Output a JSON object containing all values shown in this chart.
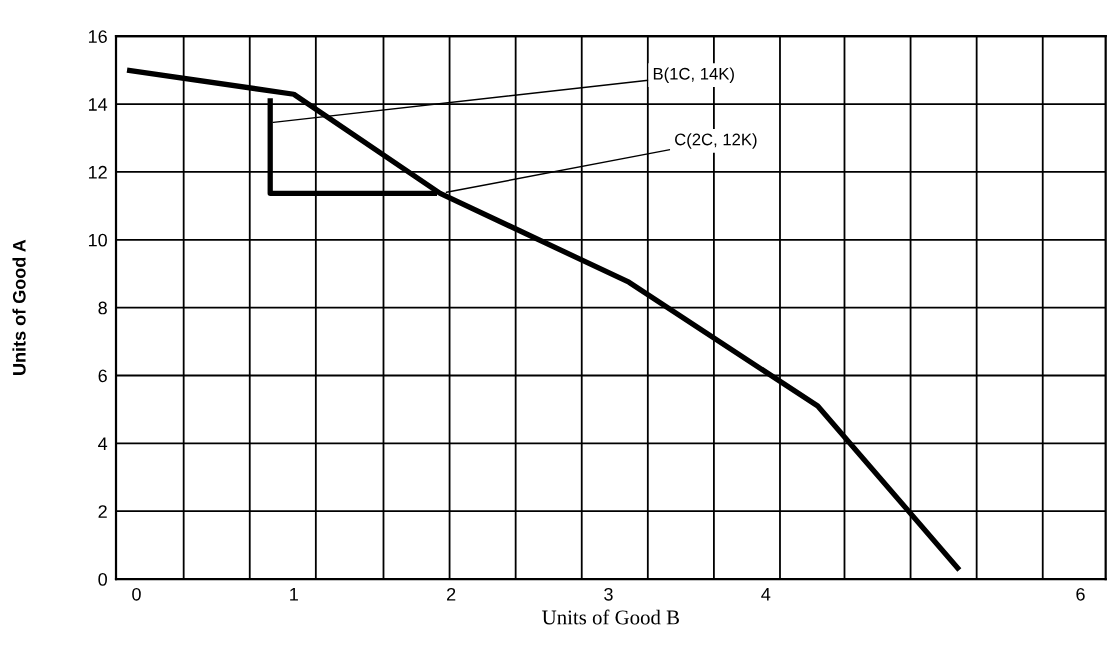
{
  "chart_data": {
    "type": "line",
    "xlabel": "Units of Good B",
    "ylabel": "Units of Good A",
    "xlim": [
      -0.13,
      6.16
    ],
    "ylim": [
      0,
      16
    ],
    "xticks": [
      {
        "value": 0.3,
        "label": null
      },
      {
        "value": 0.72,
        "label": null
      },
      {
        "value": 1.14,
        "label": null
      },
      {
        "value": 1.57,
        "label": null
      },
      {
        "value": 1.99,
        "label": null
      },
      {
        "value": 2.41,
        "label": null
      },
      {
        "value": 2.83,
        "label": null
      },
      {
        "value": 3.25,
        "label": null
      },
      {
        "value": 3.67,
        "label": null
      },
      {
        "value": 4.09,
        "label": null
      },
      {
        "value": 4.5,
        "label": null
      },
      {
        "value": 4.92,
        "label": null
      },
      {
        "value": 5.34,
        "label": null
      },
      {
        "value": 5.76,
        "label": null
      },
      0,
      1,
      2,
      3,
      4,
      6
    ],
    "yticks": [
      0,
      2,
      4,
      6,
      8,
      10,
      12,
      14,
      16
    ],
    "grid": true,
    "series": [
      {
        "color": "#000000",
        "x": [
          -0.06,
          1.0,
          1.93,
          3.13,
          4.33,
          5.23
        ],
        "values": [
          15.0,
          14.29,
          11.37,
          8.75,
          5.1,
          0.27
        ]
      },
      {
        "color": "#000000",
        "x": [
          0.85,
          0.85,
          1.91
        ],
        "values": [
          14.17,
          11.37,
          11.37
        ]
      }
    ],
    "annotations": [
      {
        "text": "B(1C, 14K)",
        "x": 0.87,
        "y": 13.46
      },
      {
        "text": "C(2C, 12K)",
        "x": 1.97,
        "y": 11.4
      }
    ]
  }
}
